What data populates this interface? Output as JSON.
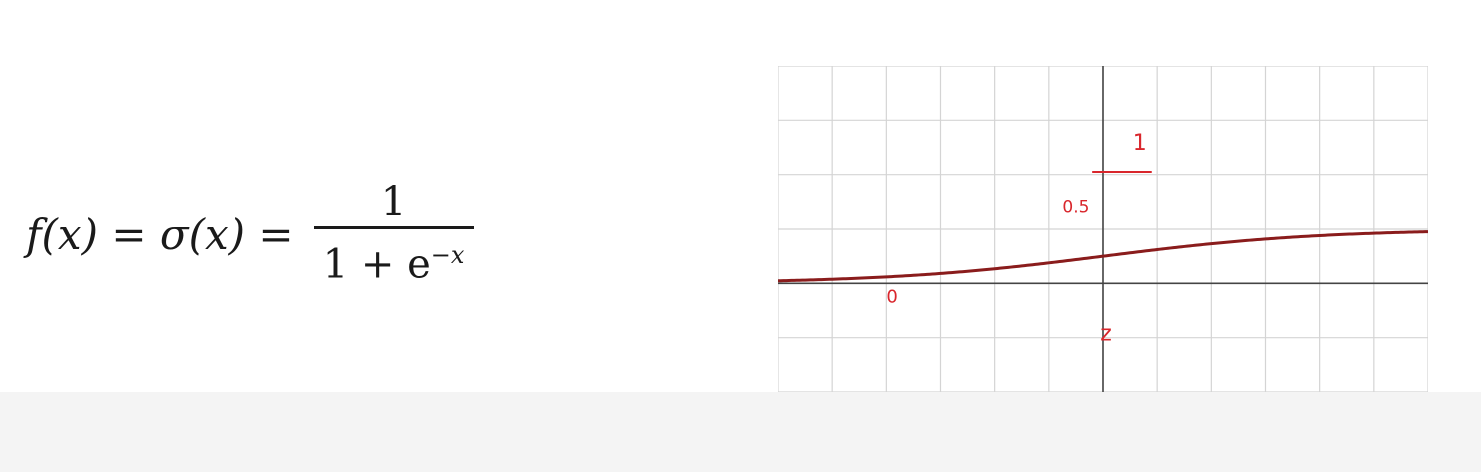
{
  "formula": {
    "lhs": "f(x) = σ(x) =",
    "numerator": "1",
    "denominator_base": "1 + e",
    "denominator_exponent": "−x"
  },
  "chart_data": {
    "type": "line",
    "function": "sigmoid",
    "series": [
      {
        "x": [
          -6,
          -5,
          -4,
          -3,
          -2,
          -1,
          0,
          1,
          2,
          3,
          4,
          5,
          6
        ],
        "values": [
          0.0025,
          0.0067,
          0.018,
          0.047,
          0.119,
          0.269,
          0.5,
          0.731,
          0.881,
          0.953,
          0.982,
          0.993,
          0.9975
        ]
      }
    ],
    "xlim": [
      -6,
      6
    ],
    "ylim": [
      -2,
      4
    ],
    "grid": true,
    "line_color": "#8a1c1c",
    "annotations": {
      "one_label": "1",
      "half_label": "0.5",
      "zero_label": "0",
      "z_label": "z",
      "annotation_color": "#d9262c"
    }
  }
}
